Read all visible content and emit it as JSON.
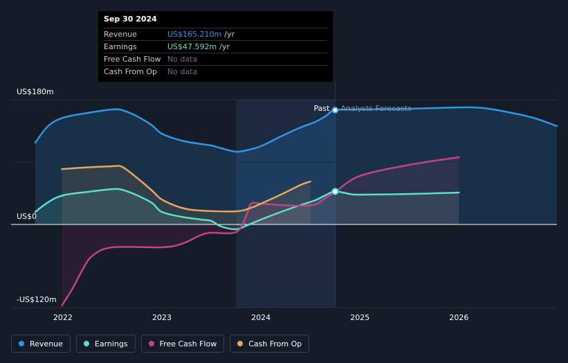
{
  "tooltip": {
    "date": "Sep 30 2024",
    "rows": [
      {
        "label": "Revenue",
        "value": "US$165.210m",
        "unit": "/yr",
        "color": "#2f97e6"
      },
      {
        "label": "Earnings",
        "value": "US$47.592m",
        "unit": "/yr",
        "color": "#5ce0c8"
      },
      {
        "label": "Free Cash Flow",
        "value": "No data",
        "unit": "",
        "color": "#6b7180"
      },
      {
        "label": "Cash From Op",
        "value": "No data",
        "unit": "",
        "color": "#6b7180"
      }
    ]
  },
  "labels": {
    "past": "Past",
    "forecast": "Analysts Forecasts"
  },
  "legend": [
    {
      "label": "Revenue",
      "color": "#2f97e6"
    },
    {
      "label": "Earnings",
      "color": "#5ce0c8"
    },
    {
      "label": "Free Cash Flow",
      "color": "#c2457f"
    },
    {
      "label": "Cash From Op",
      "color": "#e8a75c"
    }
  ],
  "chart_data": {
    "type": "line",
    "title": "",
    "xlabel": "",
    "ylabel": "",
    "y_tick_labels": [
      "US$180m",
      "US$0",
      "-US$120m"
    ],
    "y_tick_values": [
      180,
      0,
      -120
    ],
    "ylim": [
      -120,
      180
    ],
    "xlim": [
      2021.7,
      2026.99
    ],
    "x_ticks": [
      2022,
      2023,
      2024,
      2025,
      2026
    ],
    "x_tick_labels": [
      "2022",
      "2023",
      "2024",
      "2025",
      "2026"
    ],
    "past_end": 2024.75,
    "highlight_start": 2023.75,
    "series": [
      {
        "name": "Revenue",
        "color": "#2f97e6",
        "points": [
          [
            2021.72,
            118
          ],
          [
            2021.85,
            142
          ],
          [
            2022.0,
            154
          ],
          [
            2022.25,
            161
          ],
          [
            2022.5,
            166
          ],
          [
            2022.6,
            165
          ],
          [
            2022.75,
            156
          ],
          [
            2022.9,
            143
          ],
          [
            2023.0,
            131
          ],
          [
            2023.2,
            121
          ],
          [
            2023.4,
            116
          ],
          [
            2023.5,
            114
          ],
          [
            2023.6,
            110
          ],
          [
            2023.75,
            105
          ],
          [
            2023.85,
            107
          ],
          [
            2024.0,
            113
          ],
          [
            2024.2,
            127
          ],
          [
            2024.4,
            140
          ],
          [
            2024.55,
            148
          ],
          [
            2024.65,
            156
          ],
          [
            2024.75,
            165
          ],
          [
            2025.0,
            166
          ],
          [
            2025.5,
            167
          ],
          [
            2026.0,
            169
          ],
          [
            2026.25,
            168
          ],
          [
            2026.5,
            162
          ],
          [
            2026.75,
            154
          ],
          [
            2026.99,
            142
          ]
        ]
      },
      {
        "name": "Earnings",
        "color": "#5ce0c8",
        "points": [
          [
            2021.72,
            18
          ],
          [
            2021.85,
            32
          ],
          [
            2022.0,
            42
          ],
          [
            2022.25,
            47
          ],
          [
            2022.5,
            51
          ],
          [
            2022.6,
            50
          ],
          [
            2022.75,
            42
          ],
          [
            2022.9,
            31
          ],
          [
            2023.0,
            18
          ],
          [
            2023.2,
            11
          ],
          [
            2023.4,
            7
          ],
          [
            2023.5,
            5
          ],
          [
            2023.6,
            -3
          ],
          [
            2023.75,
            -7
          ],
          [
            2023.85,
            -2
          ],
          [
            2024.0,
            7
          ],
          [
            2024.2,
            18
          ],
          [
            2024.4,
            28
          ],
          [
            2024.55,
            35
          ],
          [
            2024.65,
            42
          ],
          [
            2024.75,
            47.6
          ],
          [
            2024.9,
            44
          ],
          [
            2025.0,
            43
          ],
          [
            2025.5,
            44
          ],
          [
            2026.0,
            46
          ]
        ]
      },
      {
        "name": "Free Cash Flow",
        "color": "#c2457f",
        "points": [
          [
            2021.99,
            -117
          ],
          [
            2022.1,
            -92
          ],
          [
            2022.2,
            -65
          ],
          [
            2022.3,
            -45
          ],
          [
            2022.5,
            -33
          ],
          [
            2023.0,
            -33
          ],
          [
            2023.2,
            -28
          ],
          [
            2023.4,
            -15
          ],
          [
            2023.5,
            -12
          ],
          [
            2023.75,
            -11
          ],
          [
            2023.85,
            12
          ],
          [
            2023.9,
            30
          ],
          [
            2024.0,
            30
          ],
          [
            2024.2,
            28
          ],
          [
            2024.4,
            27
          ],
          [
            2024.55,
            29
          ],
          [
            2024.65,
            38
          ],
          [
            2024.75,
            47
          ],
          [
            2025.0,
            70
          ],
          [
            2025.5,
            86
          ],
          [
            2026.0,
            97
          ]
        ]
      },
      {
        "name": "Cash From Op",
        "color": "#e8a75c",
        "points": [
          [
            2021.99,
            80
          ],
          [
            2022.2,
            82
          ],
          [
            2022.5,
            84
          ],
          [
            2022.6,
            83
          ],
          [
            2022.75,
            67
          ],
          [
            2022.9,
            49
          ],
          [
            2023.0,
            36
          ],
          [
            2023.2,
            24
          ],
          [
            2023.4,
            20
          ],
          [
            2023.75,
            19
          ],
          [
            2023.9,
            24
          ],
          [
            2024.0,
            30
          ],
          [
            2024.2,
            43
          ],
          [
            2024.4,
            57
          ],
          [
            2024.5,
            62
          ]
        ]
      }
    ]
  }
}
